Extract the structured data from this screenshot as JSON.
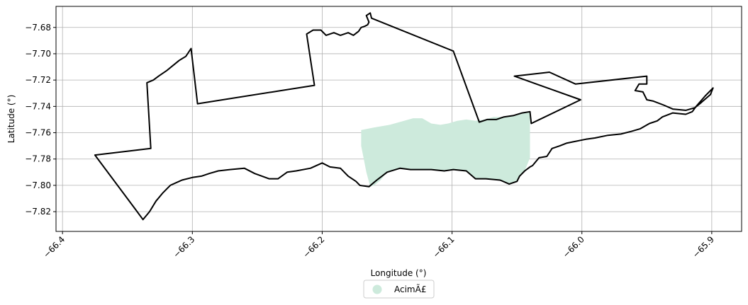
{
  "chart_data": {
    "type": "map",
    "title": "",
    "xlabel": "Longitude (°)",
    "ylabel": "Latitude (°)",
    "xlim": [
      -66.405,
      -65.877
    ],
    "ylim": [
      -7.835,
      -7.664
    ],
    "grid": true,
    "legend_placement": "bottom-center",
    "x_ticks": [
      {
        "value": -66.4,
        "label": "−66.4"
      },
      {
        "value": -66.3,
        "label": "−66.3"
      },
      {
        "value": -66.2,
        "label": "−66.2"
      },
      {
        "value": -66.1,
        "label": "−66.1"
      },
      {
        "value": -66.0,
        "label": "−66.0"
      },
      {
        "value": -65.9,
        "label": "−65.9"
      }
    ],
    "y_ticks": [
      {
        "value": -7.68,
        "label": "−7.68"
      },
      {
        "value": -7.7,
        "label": "−7.70"
      },
      {
        "value": -7.72,
        "label": "−7.72"
      },
      {
        "value": -7.74,
        "label": "−7.74"
      },
      {
        "value": -7.76,
        "label": "−7.76"
      },
      {
        "value": -7.78,
        "label": "−7.78"
      },
      {
        "value": -7.8,
        "label": "−7.80"
      },
      {
        "value": -7.82,
        "label": "−7.82"
      }
    ],
    "boundary": {
      "color": "#000000",
      "points": [
        [
          -66.375,
          -7.777
        ],
        [
          -66.332,
          -7.772
        ],
        [
          -66.335,
          -7.722
        ],
        [
          -66.33,
          -7.72
        ],
        [
          -66.326,
          -7.717
        ],
        [
          -66.32,
          -7.713
        ],
        [
          -66.315,
          -7.709
        ],
        [
          -66.31,
          -7.705
        ],
        [
          -66.305,
          -7.702
        ],
        [
          -66.301,
          -7.696
        ],
        [
          -66.296,
          -7.738
        ],
        [
          -66.206,
          -7.724
        ],
        [
          -66.212,
          -7.685
        ],
        [
          -66.207,
          -7.682
        ],
        [
          -66.201,
          -7.682
        ],
        [
          -66.197,
          -7.686
        ],
        [
          -66.191,
          -7.684
        ],
        [
          -66.186,
          -7.686
        ],
        [
          -66.18,
          -7.684
        ],
        [
          -66.176,
          -7.686
        ],
        [
          -66.172,
          -7.683
        ],
        [
          -66.17,
          -7.68
        ],
        [
          -66.167,
          -7.679
        ],
        [
          -66.165,
          -7.678
        ],
        [
          -66.164,
          -7.676
        ],
        [
          -66.166,
          -7.671
        ],
        [
          -66.163,
          -7.669
        ],
        [
          -66.162,
          -7.673
        ],
        [
          -66.099,
          -7.698
        ],
        [
          -66.079,
          -7.752
        ],
        [
          -66.073,
          -7.75
        ],
        [
          -66.066,
          -7.75
        ],
        [
          -66.06,
          -7.748
        ],
        [
          -66.053,
          -7.747
        ],
        [
          -66.046,
          -7.745
        ],
        [
          -66.04,
          -7.744
        ],
        [
          -66.039,
          -7.753
        ],
        [
          -66.001,
          -7.735
        ],
        [
          -66.052,
          -7.717
        ],
        [
          -66.025,
          -7.714
        ],
        [
          -66.005,
          -7.723
        ],
        [
          -65.95,
          -7.717
        ],
        [
          -65.95,
          -7.723
        ],
        [
          -65.956,
          -7.723
        ],
        [
          -65.959,
          -7.728
        ],
        [
          -65.953,
          -7.729
        ],
        [
          -65.95,
          -7.735
        ],
        [
          -65.945,
          -7.736
        ],
        [
          -65.937,
          -7.739
        ],
        [
          -65.93,
          -7.742
        ],
        [
          -65.92,
          -7.743
        ],
        [
          -65.913,
          -7.741
        ],
        [
          -65.908,
          -7.737
        ],
        [
          -65.901,
          -7.731
        ],
        [
          -65.899,
          -7.726
        ],
        [
          -65.905,
          -7.732
        ],
        [
          -65.912,
          -7.74
        ],
        [
          -65.915,
          -7.744
        ],
        [
          -65.92,
          -7.746
        ],
        [
          -65.93,
          -7.745
        ],
        [
          -65.938,
          -7.748
        ],
        [
          -65.942,
          -7.751
        ],
        [
          -65.948,
          -7.753
        ],
        [
          -65.955,
          -7.757
        ],
        [
          -65.962,
          -7.759
        ],
        [
          -65.97,
          -7.761
        ],
        [
          -65.98,
          -7.762
        ],
        [
          -65.99,
          -7.764
        ],
        [
          -65.997,
          -7.765
        ],
        [
          -66.007,
          -7.767
        ],
        [
          -66.012,
          -7.768
        ],
        [
          -66.017,
          -7.77
        ],
        [
          -66.023,
          -7.772
        ],
        [
          -66.027,
          -7.778
        ],
        [
          -66.033,
          -7.779
        ],
        [
          -66.038,
          -7.785
        ],
        [
          -66.04,
          -7.786
        ],
        [
          -66.044,
          -7.789
        ],
        [
          -66.048,
          -7.793
        ],
        [
          -66.05,
          -7.797
        ],
        [
          -66.056,
          -7.799
        ],
        [
          -66.063,
          -7.796
        ],
        [
          -66.074,
          -7.795
        ],
        [
          -66.082,
          -7.795
        ],
        [
          -66.089,
          -7.789
        ],
        [
          -66.099,
          -7.788
        ],
        [
          -66.106,
          -7.789
        ],
        [
          -66.116,
          -7.788
        ],
        [
          -66.125,
          -7.788
        ],
        [
          -66.132,
          -7.788
        ],
        [
          -66.14,
          -7.787
        ],
        [
          -66.15,
          -7.79
        ],
        [
          -66.158,
          -7.796
        ],
        [
          -66.164,
          -7.801
        ],
        [
          -66.171,
          -7.8
        ],
        [
          -66.174,
          -7.797
        ],
        [
          -66.18,
          -7.793
        ],
        [
          -66.186,
          -7.787
        ],
        [
          -66.194,
          -7.786
        ],
        [
          -66.2,
          -7.783
        ],
        [
          -66.209,
          -7.787
        ],
        [
          -66.22,
          -7.789
        ],
        [
          -66.227,
          -7.79
        ],
        [
          -66.234,
          -7.795
        ],
        [
          -66.241,
          -7.795
        ],
        [
          -66.252,
          -7.791
        ],
        [
          -66.26,
          -7.787
        ],
        [
          -66.271,
          -7.788
        ],
        [
          -66.28,
          -7.789
        ],
        [
          -66.287,
          -7.791
        ],
        [
          -66.293,
          -7.793
        ],
        [
          -66.3,
          -7.794
        ],
        [
          -66.308,
          -7.796
        ],
        [
          -66.317,
          -7.8
        ],
        [
          -66.323,
          -7.806
        ],
        [
          -66.328,
          -7.812
        ],
        [
          -66.333,
          -7.82
        ],
        [
          -66.338,
          -7.826
        ],
        [
          -66.344,
          -7.818
        ],
        [
          -66.375,
          -7.777
        ]
      ]
    },
    "series": [
      {
        "name": "AcimÃ£",
        "color": "#cdeadc",
        "polygon": [
          [
            -66.17,
            -7.758
          ],
          [
            -66.16,
            -7.756
          ],
          [
            -66.148,
            -7.754
          ],
          [
            -66.137,
            -7.751
          ],
          [
            -66.13,
            -7.749
          ],
          [
            -66.123,
            -7.749
          ],
          [
            -66.116,
            -7.753
          ],
          [
            -66.109,
            -7.754
          ],
          [
            -66.103,
            -7.753
          ],
          [
            -66.096,
            -7.751
          ],
          [
            -66.089,
            -7.75
          ],
          [
            -66.082,
            -7.751
          ],
          [
            -66.075,
            -7.75
          ],
          [
            -66.068,
            -7.748
          ],
          [
            -66.06,
            -7.748
          ],
          [
            -66.052,
            -7.747
          ],
          [
            -66.046,
            -7.745
          ],
          [
            -66.04,
            -7.744
          ],
          [
            -66.04,
            -7.779
          ],
          [
            -66.044,
            -7.789
          ],
          [
            -66.048,
            -7.793
          ],
          [
            -66.05,
            -7.797
          ],
          [
            -66.056,
            -7.799
          ],
          [
            -66.063,
            -7.796
          ],
          [
            -66.074,
            -7.795
          ],
          [
            -66.082,
            -7.795
          ],
          [
            -66.089,
            -7.789
          ],
          [
            -66.099,
            -7.788
          ],
          [
            -66.106,
            -7.789
          ],
          [
            -66.116,
            -7.788
          ],
          [
            -66.125,
            -7.788
          ],
          [
            -66.132,
            -7.788
          ],
          [
            -66.14,
            -7.787
          ],
          [
            -66.15,
            -7.79
          ],
          [
            -66.155,
            -7.796
          ],
          [
            -66.16,
            -7.8
          ],
          [
            -66.163,
            -7.801
          ],
          [
            -66.166,
            -7.79
          ],
          [
            -66.168,
            -7.78
          ],
          [
            -66.17,
            -7.77
          ],
          [
            -66.17,
            -7.758
          ]
        ]
      }
    ]
  }
}
